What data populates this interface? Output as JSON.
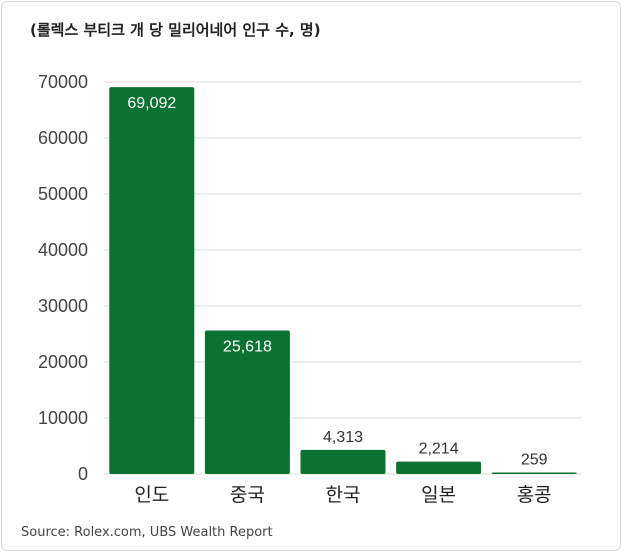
{
  "chart_data": {
    "type": "bar",
    "title": "(롤렉스 부티크 개 당 밀리어네어 인구 수, 명)",
    "categories": [
      "인도",
      "중국",
      "한국",
      "일본",
      "홍콩"
    ],
    "values": [
      69092,
      25618,
      4313,
      2214,
      259
    ],
    "value_labels": [
      "69,092",
      "25,618",
      "4,313",
      "2,214",
      "259"
    ],
    "ylim": [
      0,
      70000
    ],
    "yticks": [
      "0",
      "10000",
      "20000",
      "30000",
      "40000",
      "50000",
      "60000",
      "70000"
    ],
    "grid": true,
    "bar_color": "#0b7332",
    "source": "Source: Rolex.com, UBS Wealth Report"
  }
}
